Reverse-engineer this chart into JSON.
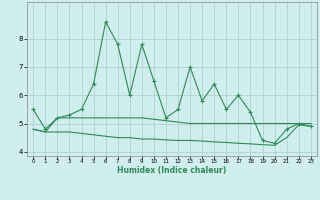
{
  "xlabel": "Humidex (Indice chaleur)",
  "x": [
    0,
    1,
    2,
    3,
    4,
    5,
    6,
    7,
    8,
    9,
    10,
    11,
    12,
    13,
    14,
    15,
    16,
    17,
    18,
    19,
    20,
    21,
    22,
    23
  ],
  "line1": [
    5.5,
    4.8,
    5.2,
    5.3,
    5.5,
    6.4,
    8.6,
    7.8,
    6.0,
    7.8,
    6.5,
    5.2,
    5.5,
    7.0,
    5.8,
    6.4,
    5.5,
    6.0,
    5.4,
    4.4,
    4.3,
    4.8,
    5.0,
    4.9
  ],
  "line2": [
    4.8,
    4.7,
    5.2,
    5.2,
    5.2,
    5.2,
    5.2,
    5.2,
    5.2,
    5.2,
    5.15,
    5.1,
    5.05,
    5.0,
    5.0,
    5.0,
    5.0,
    5.0,
    5.0,
    5.0,
    5.0,
    5.0,
    5.0,
    5.0
  ],
  "line3": [
    4.8,
    4.7,
    4.7,
    4.7,
    4.65,
    4.6,
    4.55,
    4.5,
    4.5,
    4.45,
    4.45,
    4.42,
    4.4,
    4.4,
    4.38,
    4.35,
    4.33,
    4.3,
    4.28,
    4.25,
    4.23,
    4.5,
    4.95,
    4.9
  ],
  "line_color": "#2e8b57",
  "bg_color": "#d0eeee",
  "grid_color": "#a8cccc",
  "ylim": [
    3.85,
    9.3
  ],
  "xlim": [
    -0.5,
    23.5
  ],
  "yticks": [
    4,
    5,
    6,
    7,
    8
  ],
  "xticks": [
    0,
    1,
    2,
    3,
    4,
    5,
    6,
    7,
    8,
    9,
    10,
    11,
    12,
    13,
    14,
    15,
    16,
    17,
    18,
    19,
    20,
    21,
    22,
    23
  ]
}
